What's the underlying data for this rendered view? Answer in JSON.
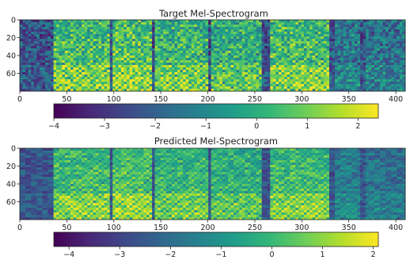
{
  "colors": {
    "viridis": [
      "#440154",
      "#482878",
      "#3e4989",
      "#31688e",
      "#26828e",
      "#1f9e89",
      "#35b779",
      "#6ece58",
      "#b5de2b",
      "#fde725"
    ],
    "background": "#ffffff",
    "axis": "#222222"
  },
  "chart_data": [
    {
      "type": "heatmap",
      "title": "Target Mel-Spectrogram",
      "xlabel": "",
      "ylabel": "",
      "xlim": [
        0,
        410
      ],
      "ylim": [
        80,
        0
      ],
      "x_ticks": [
        0,
        50,
        100,
        150,
        200,
        250,
        300,
        350,
        400
      ],
      "y_ticks": [
        0,
        20,
        40,
        60
      ],
      "colormap": "viridis",
      "colorbar": {
        "orientation": "horizontal",
        "range": [
          -4,
          2.4
        ],
        "ticks": [
          -4,
          -3,
          -2,
          -1,
          0,
          1,
          2
        ],
        "tick_labels": [
          "−4",
          "−3",
          "−2",
          "−1",
          "0",
          "1",
          "2"
        ]
      },
      "grid": false
    },
    {
      "type": "heatmap",
      "title": "Predicted Mel-Spectrogram",
      "xlabel": "",
      "ylabel": "",
      "xlim": [
        0,
        410
      ],
      "ylim": [
        80,
        0
      ],
      "x_ticks": [
        0,
        50,
        100,
        150,
        200,
        250,
        300,
        350,
        400
      ],
      "y_ticks": [
        0,
        20,
        40,
        60
      ],
      "colormap": "viridis",
      "colorbar": {
        "orientation": "horizontal",
        "range": [
          -4.3,
          2.1
        ],
        "ticks": [
          -4,
          -3,
          -2,
          -1,
          0,
          1,
          2
        ],
        "tick_labels": [
          "−4",
          "−3",
          "−2",
          "−1",
          "0",
          "1",
          "2"
        ]
      },
      "grid": false
    }
  ]
}
